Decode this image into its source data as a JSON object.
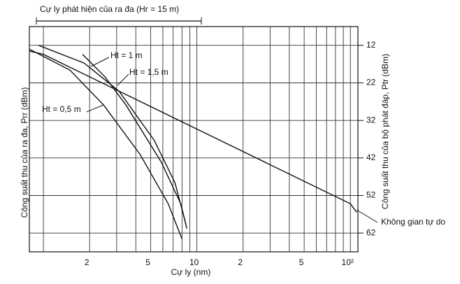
{
  "chart_data": {
    "type": "line",
    "title": "Cự ly phát hiện của ra đa (Hr = 15 m)",
    "xlabel": "Cự ly (nm)",
    "ylabel": "Công suất thu của ra đa, Prr (dBm)",
    "y2label": "Công suất thu của bộ phát đáp, Ptr (dBm)",
    "xscale": "log",
    "xlim": [
      0.81,
      112
    ],
    "xticks": [
      2,
      5,
      10,
      {
        "value": 20,
        "label": "2"
      },
      {
        "value": 50,
        "label": "5"
      },
      {
        "value": 100,
        "label": "10²"
      }
    ],
    "xgrid_minor": [
      1,
      3,
      4,
      6,
      7,
      8,
      9,
      30,
      40,
      60,
      70,
      80,
      90
    ],
    "ylim": [
      7,
      67
    ],
    "yinverted": true,
    "yticks": [
      12,
      22,
      32,
      42,
      52,
      62
    ],
    "grid": true,
    "series": [
      {
        "name": "Không gian tự do",
        "color": "#111111",
        "x": [
          0.81,
          1,
          10,
          100,
          110
        ],
        "values": [
          13.5,
          14.4,
          34.3,
          54.2,
          56.5
        ]
      },
      {
        "name": "Ht = 0,5 m",
        "color": "#111111",
        "x": [
          0.81,
          1.49,
          2.47,
          4.27,
          6.5,
          8.0
        ],
        "values": [
          13,
          18.6,
          27.9,
          41.1,
          54.2,
          63.6
        ]
      },
      {
        "name": "Ht = 1 m",
        "color": "#111111",
        "x": [
          0.93,
          1.84,
          3.11,
          5.27,
          7.2,
          8.5
        ],
        "values": [
          12,
          16.7,
          24.2,
          37.3,
          48.6,
          59.8
        ]
      },
      {
        "name": "Ht = 1,5 m",
        "color": "#111111",
        "x": [
          1.8,
          2.52,
          3.45,
          5.84,
          7.85,
          8.6
        ],
        "values": [
          14.4,
          20.4,
          27.9,
          43,
          54.2,
          60.8
        ]
      }
    ]
  }
}
